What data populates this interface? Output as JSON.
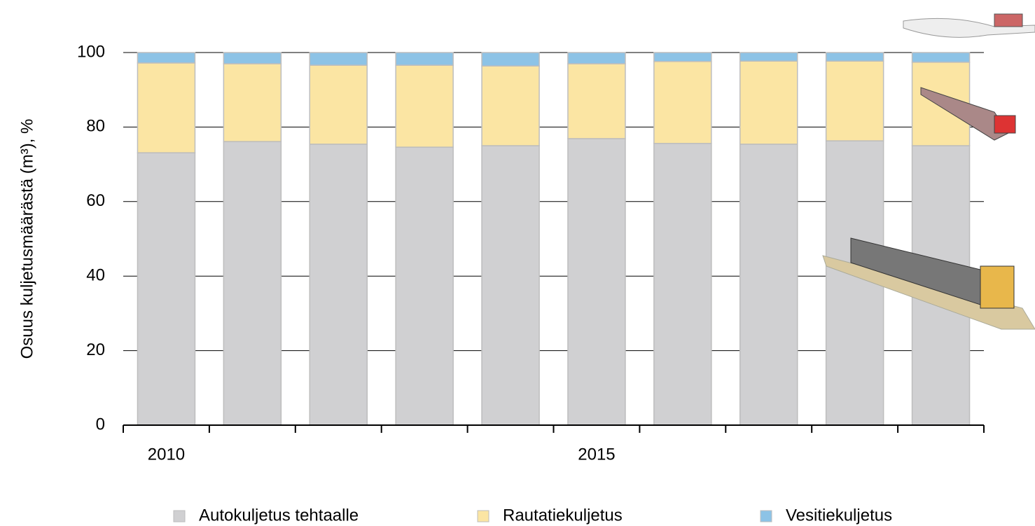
{
  "chart_data": {
    "type": "stacked_bar",
    "y_label": "Osuus kuljetusmäärästä (m³), %",
    "categories": [
      "2010",
      null,
      null,
      null,
      null,
      "2015",
      null,
      null,
      null,
      null
    ],
    "series": [
      {
        "name": "Autokuljetus tehtaalle",
        "color": "#d0d0d2",
        "values": [
          73.1,
          76.1,
          75.4,
          74.6,
          75.0,
          76.9,
          75.6,
          75.4,
          76.3,
          75.0
        ]
      },
      {
        "name": "Rautatiekuljetus",
        "color": "#fbe5a3",
        "values": [
          24.1,
          20.9,
          21.2,
          22.0,
          21.4,
          20.1,
          22.0,
          22.3,
          21.4,
          22.4
        ]
      },
      {
        "name": "Vesitiekuljetus",
        "color": "#8dc3e6",
        "values": [
          2.8,
          3.0,
          3.4,
          3.4,
          3.6,
          3.0,
          2.4,
          2.3,
          2.3,
          2.6
        ]
      }
    ],
    "ylim": [
      0,
      100
    ],
    "yticks": [
      0,
      20,
      40,
      60,
      80,
      100
    ],
    "grid": true,
    "legend": "bottom"
  }
}
